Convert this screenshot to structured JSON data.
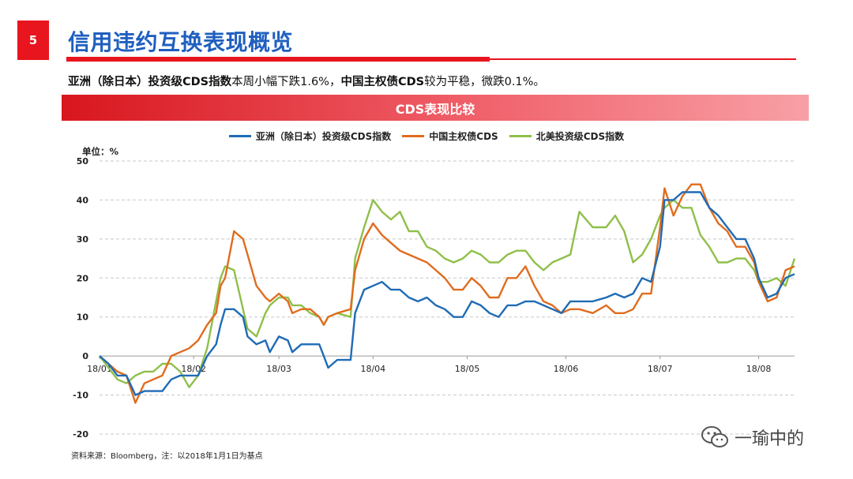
{
  "header": {
    "page_number": "5",
    "title": "信用违约互换表现概览"
  },
  "summary": {
    "bold_1": "亚洲（除日本）投资级CDS指数",
    "text_1": "本周小幅下跌1.6%，",
    "bold_2": "中国主权债CDS",
    "text_2": "较为平稳，微跌0.1%。"
  },
  "banner": {
    "title": "CDS表现比较"
  },
  "source_note": "资料来源：Bloomberg，注：以2018年1月1日为基点",
  "watermark": {
    "text": "一瑜中的",
    "icon": "wechat-icon"
  },
  "chart_data": {
    "type": "line",
    "title": "CDS表现比较",
    "unit_label": "单位：%",
    "ylim": [
      -20,
      50
    ],
    "yticks": [
      -20,
      -10,
      0,
      10,
      20,
      30,
      40,
      50
    ],
    "xlim": [
      0,
      155
    ],
    "xticks": [
      {
        "label": "18/01",
        "x": 0
      },
      {
        "label": "18/02",
        "x": 21
      },
      {
        "label": "18/03",
        "x": 40
      },
      {
        "label": "18/04",
        "x": 61
      },
      {
        "label": "18/05",
        "x": 82
      },
      {
        "label": "18/06",
        "x": 104
      },
      {
        "label": "18/07",
        "x": 125
      },
      {
        "label": "18/08",
        "x": 147
      }
    ],
    "grid": true,
    "legend_position": "top",
    "series": [
      {
        "name": "亚洲（除日本）投资级CDS指数",
        "color": "#1f6bb5",
        "points": [
          [
            0,
            0
          ],
          [
            2,
            -2
          ],
          [
            4,
            -5
          ],
          [
            6,
            -5
          ],
          [
            8,
            -10
          ],
          [
            10,
            -9
          ],
          [
            12,
            -9
          ],
          [
            14,
            -9
          ],
          [
            16,
            -6
          ],
          [
            18,
            -5
          ],
          [
            20,
            -5
          ],
          [
            22,
            -5
          ],
          [
            24,
            0
          ],
          [
            26,
            3
          ],
          [
            27,
            8
          ],
          [
            28,
            12
          ],
          [
            30,
            12
          ],
          [
            32,
            10
          ],
          [
            33,
            5
          ],
          [
            35,
            3
          ],
          [
            37,
            4
          ],
          [
            38,
            1
          ],
          [
            40,
            5
          ],
          [
            42,
            4
          ],
          [
            43,
            1
          ],
          [
            45,
            3
          ],
          [
            47,
            3
          ],
          [
            49,
            3
          ],
          [
            50,
            0
          ],
          [
            51,
            -3
          ],
          [
            53,
            -1
          ],
          [
            56,
            -1
          ],
          [
            57,
            11
          ],
          [
            59,
            17
          ],
          [
            61,
            18
          ],
          [
            63,
            19
          ],
          [
            65,
            17
          ],
          [
            67,
            17
          ],
          [
            69,
            15
          ],
          [
            71,
            14
          ],
          [
            73,
            15
          ],
          [
            75,
            13
          ],
          [
            77,
            12
          ],
          [
            79,
            10
          ],
          [
            81,
            10
          ],
          [
            83,
            14
          ],
          [
            85,
            13
          ],
          [
            87,
            11
          ],
          [
            89,
            10
          ],
          [
            91,
            13
          ],
          [
            93,
            13
          ],
          [
            95,
            14
          ],
          [
            97,
            14
          ],
          [
            99,
            13
          ],
          [
            101,
            12
          ],
          [
            103,
            11
          ],
          [
            105,
            14
          ],
          [
            107,
            14
          ],
          [
            110,
            14
          ],
          [
            113,
            15
          ],
          [
            115,
            16
          ],
          [
            117,
            15
          ],
          [
            119,
            16
          ],
          [
            121,
            20
          ],
          [
            123,
            19
          ],
          [
            125,
            28
          ],
          [
            126,
            40
          ],
          [
            128,
            40
          ],
          [
            130,
            42
          ],
          [
            132,
            42
          ],
          [
            134,
            42
          ],
          [
            136,
            38
          ],
          [
            138,
            36
          ],
          [
            140,
            33
          ],
          [
            142,
            30
          ],
          [
            144,
            30
          ],
          [
            146,
            25
          ],
          [
            147,
            20
          ],
          [
            149,
            15
          ],
          [
            151,
            16
          ],
          [
            153,
            20
          ],
          [
            155,
            21
          ]
        ]
      },
      {
        "name": "中国主权债CDS",
        "color": "#e06c1e",
        "points": [
          [
            0,
            0
          ],
          [
            2,
            -2
          ],
          [
            4,
            -4
          ],
          [
            6,
            -5
          ],
          [
            8,
            -12
          ],
          [
            10,
            -7
          ],
          [
            12,
            -6
          ],
          [
            14,
            -5
          ],
          [
            16,
            0
          ],
          [
            18,
            1
          ],
          [
            20,
            2
          ],
          [
            22,
            4
          ],
          [
            24,
            8
          ],
          [
            26,
            11
          ],
          [
            27,
            18
          ],
          [
            28,
            20
          ],
          [
            30,
            32
          ],
          [
            32,
            30
          ],
          [
            33,
            26
          ],
          [
            35,
            18
          ],
          [
            37,
            15
          ],
          [
            38,
            14
          ],
          [
            40,
            16
          ],
          [
            42,
            14
          ],
          [
            43,
            11
          ],
          [
            45,
            12
          ],
          [
            47,
            12
          ],
          [
            49,
            10
          ],
          [
            50,
            8
          ],
          [
            51,
            10
          ],
          [
            53,
            11
          ],
          [
            56,
            12
          ],
          [
            57,
            22
          ],
          [
            59,
            30
          ],
          [
            61,
            34
          ],
          [
            63,
            31
          ],
          [
            65,
            29
          ],
          [
            67,
            27
          ],
          [
            69,
            26
          ],
          [
            71,
            25
          ],
          [
            73,
            24
          ],
          [
            75,
            22
          ],
          [
            77,
            20
          ],
          [
            79,
            17
          ],
          [
            81,
            17
          ],
          [
            83,
            20
          ],
          [
            85,
            18
          ],
          [
            87,
            15
          ],
          [
            89,
            15
          ],
          [
            91,
            20
          ],
          [
            93,
            20
          ],
          [
            95,
            23
          ],
          [
            97,
            18
          ],
          [
            99,
            14
          ],
          [
            101,
            13
          ],
          [
            103,
            11
          ],
          [
            105,
            12
          ],
          [
            107,
            12
          ],
          [
            110,
            11
          ],
          [
            113,
            13
          ],
          [
            115,
            11
          ],
          [
            117,
            11
          ],
          [
            119,
            12
          ],
          [
            121,
            16
          ],
          [
            123,
            16
          ],
          [
            125,
            33
          ],
          [
            126,
            43
          ],
          [
            128,
            36
          ],
          [
            130,
            41
          ],
          [
            132,
            44
          ],
          [
            134,
            44
          ],
          [
            136,
            38
          ],
          [
            138,
            34
          ],
          [
            140,
            32
          ],
          [
            142,
            28
          ],
          [
            144,
            28
          ],
          [
            146,
            24
          ],
          [
            147,
            19
          ],
          [
            149,
            14
          ],
          [
            151,
            15
          ],
          [
            153,
            22
          ],
          [
            155,
            23
          ]
        ]
      },
      {
        "name": "北美投资级CDS指数",
        "color": "#8fbf4a",
        "points": [
          [
            0,
            0
          ],
          [
            2,
            -3
          ],
          [
            4,
            -6
          ],
          [
            6,
            -7
          ],
          [
            8,
            -5
          ],
          [
            10,
            -4
          ],
          [
            12,
            -4
          ],
          [
            14,
            -2
          ],
          [
            16,
            -2
          ],
          [
            18,
            -4
          ],
          [
            20,
            -8
          ],
          [
            22,
            -5
          ],
          [
            24,
            2
          ],
          [
            26,
            14
          ],
          [
            27,
            20
          ],
          [
            28,
            23
          ],
          [
            30,
            22
          ],
          [
            32,
            12
          ],
          [
            33,
            7
          ],
          [
            35,
            5
          ],
          [
            37,
            11
          ],
          [
            38,
            13
          ],
          [
            40,
            15
          ],
          [
            42,
            15
          ],
          [
            43,
            13
          ],
          [
            45,
            13
          ],
          [
            47,
            11
          ],
          [
            49,
            10
          ],
          [
            50,
            8
          ],
          [
            51,
            10
          ],
          [
            53,
            11
          ],
          [
            56,
            10
          ],
          [
            57,
            25
          ],
          [
            59,
            33
          ],
          [
            61,
            40
          ],
          [
            63,
            37
          ],
          [
            65,
            35
          ],
          [
            67,
            37
          ],
          [
            69,
            32
          ],
          [
            71,
            32
          ],
          [
            73,
            28
          ],
          [
            75,
            27
          ],
          [
            77,
            25
          ],
          [
            79,
            24
          ],
          [
            81,
            25
          ],
          [
            83,
            27
          ],
          [
            85,
            26
          ],
          [
            87,
            24
          ],
          [
            89,
            24
          ],
          [
            91,
            26
          ],
          [
            93,
            27
          ],
          [
            95,
            27
          ],
          [
            97,
            24
          ],
          [
            99,
            22
          ],
          [
            101,
            24
          ],
          [
            103,
            25
          ],
          [
            105,
            26
          ],
          [
            107,
            37
          ],
          [
            110,
            33
          ],
          [
            113,
            33
          ],
          [
            115,
            36
          ],
          [
            117,
            32
          ],
          [
            119,
            24
          ],
          [
            121,
            26
          ],
          [
            123,
            30
          ],
          [
            125,
            36
          ],
          [
            126,
            38
          ],
          [
            128,
            40
          ],
          [
            130,
            38
          ],
          [
            132,
            38
          ],
          [
            134,
            31
          ],
          [
            136,
            28
          ],
          [
            138,
            24
          ],
          [
            140,
            24
          ],
          [
            142,
            25
          ],
          [
            144,
            25
          ],
          [
            146,
            22
          ],
          [
            147,
            19
          ],
          [
            149,
            19
          ],
          [
            151,
            20
          ],
          [
            153,
            18
          ],
          [
            155,
            25
          ]
        ]
      }
    ]
  }
}
